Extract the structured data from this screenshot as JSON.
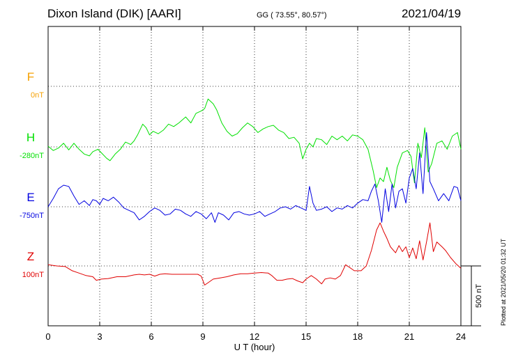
{
  "header": {
    "station": "Dixon Island (DIK)  [AARI]",
    "coords": "GG ( 73.55°,  80.57°)",
    "date": "2021/04/19"
  },
  "footer": {
    "plotted": "Plotted at 2021/05/20 01:32 UT"
  },
  "chart_data": {
    "type": "line",
    "xlabel": "U T (hour)",
    "xlim": [
      0,
      24
    ],
    "xticks": [
      0,
      3,
      6,
      9,
      12,
      15,
      18,
      21,
      24
    ],
    "scale_bar": "500 nT",
    "grid": true,
    "series": [
      {
        "name": "F",
        "offset_label": "0nT",
        "color": "#f5a000",
        "values": []
      },
      {
        "name": "H",
        "offset_label": "-280nT",
        "color": "#00e000",
        "points": [
          [
            0,
            -274
          ],
          [
            0.3,
            -310
          ],
          [
            0.6,
            -290
          ],
          [
            0.9,
            -250
          ],
          [
            1.2,
            -305
          ],
          [
            1.5,
            -250
          ],
          [
            1.8,
            -300
          ],
          [
            2.1,
            -340
          ],
          [
            2.4,
            -355
          ],
          [
            2.6,
            -320
          ],
          [
            2.9,
            -300
          ],
          [
            3.1,
            -330
          ],
          [
            3.4,
            -375
          ],
          [
            3.6,
            -395
          ],
          [
            3.9,
            -340
          ],
          [
            4.2,
            -300
          ],
          [
            4.5,
            -240
          ],
          [
            4.8,
            -260
          ],
          [
            5.0,
            -230
          ],
          [
            5.2,
            -180
          ],
          [
            5.5,
            -90
          ],
          [
            5.7,
            -120
          ],
          [
            5.9,
            -180
          ],
          [
            6.1,
            -150
          ],
          [
            6.4,
            -170
          ],
          [
            6.7,
            -140
          ],
          [
            7.0,
            -90
          ],
          [
            7.3,
            -110
          ],
          [
            7.6,
            -80
          ],
          [
            8.0,
            -30
          ],
          [
            8.3,
            -80
          ],
          [
            8.6,
            0
          ],
          [
            8.9,
            20
          ],
          [
            9.1,
            40
          ],
          [
            9.3,
            120
          ],
          [
            9.6,
            80
          ],
          [
            9.8,
            30
          ],
          [
            10.1,
            -80
          ],
          [
            10.4,
            -150
          ],
          [
            10.7,
            -190
          ],
          [
            11.0,
            -170
          ],
          [
            11.3,
            -120
          ],
          [
            11.6,
            -80
          ],
          [
            11.9,
            -110
          ],
          [
            12.2,
            -160
          ],
          [
            12.5,
            -130
          ],
          [
            12.8,
            -110
          ],
          [
            13.1,
            -100
          ],
          [
            13.4,
            -140
          ],
          [
            13.7,
            -160
          ],
          [
            14.0,
            -210
          ],
          [
            14.3,
            -200
          ],
          [
            14.6,
            -250
          ],
          [
            14.8,
            -380
          ],
          [
            15.0,
            -300
          ],
          [
            15.2,
            -250
          ],
          [
            15.4,
            -280
          ],
          [
            15.6,
            -210
          ],
          [
            15.9,
            -220
          ],
          [
            16.2,
            -260
          ],
          [
            16.5,
            -190
          ],
          [
            16.8,
            -220
          ],
          [
            17.1,
            -190
          ],
          [
            17.4,
            -230
          ],
          [
            17.7,
            -180
          ],
          [
            18.0,
            -190
          ],
          [
            18.3,
            -220
          ],
          [
            18.6,
            -300
          ],
          [
            18.9,
            -480
          ],
          [
            19.1,
            -620
          ],
          [
            19.3,
            -540
          ],
          [
            19.5,
            -570
          ],
          [
            19.7,
            -450
          ],
          [
            19.9,
            -560
          ],
          [
            20.1,
            -620
          ],
          [
            20.3,
            -450
          ],
          [
            20.6,
            -330
          ],
          [
            20.9,
            -310
          ],
          [
            21.1,
            -360
          ],
          [
            21.3,
            -580
          ],
          [
            21.5,
            -250
          ],
          [
            21.7,
            -370
          ],
          [
            21.9,
            -120
          ],
          [
            22.1,
            -490
          ],
          [
            22.3,
            -420
          ],
          [
            22.6,
            -250
          ],
          [
            22.9,
            -230
          ],
          [
            23.2,
            -300
          ],
          [
            23.5,
            -190
          ],
          [
            23.8,
            -160
          ],
          [
            24,
            -300
          ]
        ]
      },
      {
        "name": "E",
        "offset_label": "-750nT",
        "color": "#0000e0",
        "points": [
          [
            0,
            -750
          ],
          [
            0.3,
            -680
          ],
          [
            0.6,
            -600
          ],
          [
            0.9,
            -570
          ],
          [
            1.2,
            -580
          ],
          [
            1.5,
            -660
          ],
          [
            1.8,
            -730
          ],
          [
            2.1,
            -700
          ],
          [
            2.4,
            -740
          ],
          [
            2.6,
            -690
          ],
          [
            2.8,
            -700
          ],
          [
            3.0,
            -730
          ],
          [
            3.2,
            -680
          ],
          [
            3.5,
            -700
          ],
          [
            3.8,
            -670
          ],
          [
            4.1,
            -710
          ],
          [
            4.4,
            -760
          ],
          [
            4.7,
            -780
          ],
          [
            5.0,
            -800
          ],
          [
            5.3,
            -860
          ],
          [
            5.6,
            -830
          ],
          [
            5.9,
            -790
          ],
          [
            6.2,
            -760
          ],
          [
            6.5,
            -780
          ],
          [
            6.8,
            -820
          ],
          [
            7.1,
            -810
          ],
          [
            7.4,
            -770
          ],
          [
            7.7,
            -780
          ],
          [
            8.0,
            -810
          ],
          [
            8.3,
            -830
          ],
          [
            8.6,
            -790
          ],
          [
            8.9,
            -810
          ],
          [
            9.2,
            -850
          ],
          [
            9.5,
            -800
          ],
          [
            9.7,
            -880
          ],
          [
            9.9,
            -800
          ],
          [
            10.2,
            -820
          ],
          [
            10.5,
            -860
          ],
          [
            10.8,
            -800
          ],
          [
            11.1,
            -790
          ],
          [
            11.4,
            -810
          ],
          [
            11.7,
            -820
          ],
          [
            12.0,
            -810
          ],
          [
            12.3,
            -790
          ],
          [
            12.6,
            -830
          ],
          [
            12.9,
            -810
          ],
          [
            13.2,
            -790
          ],
          [
            13.5,
            -760
          ],
          [
            13.8,
            -750
          ],
          [
            14.1,
            -770
          ],
          [
            14.4,
            -740
          ],
          [
            14.7,
            -760
          ],
          [
            15.0,
            -780
          ],
          [
            15.2,
            -580
          ],
          [
            15.4,
            -720
          ],
          [
            15.6,
            -780
          ],
          [
            15.9,
            -770
          ],
          [
            16.2,
            -750
          ],
          [
            16.5,
            -790
          ],
          [
            16.8,
            -760
          ],
          [
            17.1,
            -770
          ],
          [
            17.4,
            -740
          ],
          [
            17.7,
            -760
          ],
          [
            18.0,
            -720
          ],
          [
            18.3,
            -690
          ],
          [
            18.6,
            -700
          ],
          [
            18.8,
            -620
          ],
          [
            19.0,
            -560
          ],
          [
            19.2,
            -700
          ],
          [
            19.4,
            -880
          ],
          [
            19.6,
            -600
          ],
          [
            19.8,
            -790
          ],
          [
            20.0,
            -560
          ],
          [
            20.2,
            -760
          ],
          [
            20.4,
            -620
          ],
          [
            20.6,
            -600
          ],
          [
            20.8,
            -720
          ],
          [
            21.0,
            -510
          ],
          [
            21.2,
            -430
          ],
          [
            21.4,
            -600
          ],
          [
            21.6,
            -300
          ],
          [
            21.8,
            -640
          ],
          [
            22.0,
            -130
          ],
          [
            22.2,
            -540
          ],
          [
            22.4,
            -600
          ],
          [
            22.7,
            -700
          ],
          [
            23.0,
            -640
          ],
          [
            23.3,
            -700
          ],
          [
            23.6,
            -580
          ],
          [
            23.8,
            -590
          ],
          [
            24,
            -700
          ]
        ]
      },
      {
        "name": "Z",
        "offset_label": "100nT",
        "color": "#e00000",
        "points": [
          [
            0,
            110
          ],
          [
            0.5,
            100
          ],
          [
            1.0,
            95
          ],
          [
            1.4,
            60
          ],
          [
            1.8,
            40
          ],
          [
            2.2,
            20
          ],
          [
            2.6,
            10
          ],
          [
            2.8,
            -20
          ],
          [
            3.1,
            -10
          ],
          [
            3.5,
            -5
          ],
          [
            4.0,
            10
          ],
          [
            4.5,
            10
          ],
          [
            5.0,
            25
          ],
          [
            5.3,
            30
          ],
          [
            5.6,
            25
          ],
          [
            5.9,
            30
          ],
          [
            6.2,
            15
          ],
          [
            6.5,
            30
          ],
          [
            6.8,
            35
          ],
          [
            7.2,
            30
          ],
          [
            7.7,
            30
          ],
          [
            8.2,
            30
          ],
          [
            8.7,
            30
          ],
          [
            8.9,
            15
          ],
          [
            9.1,
            -60
          ],
          [
            9.3,
            -40
          ],
          [
            9.6,
            -10
          ],
          [
            10.0,
            0
          ],
          [
            10.4,
            10
          ],
          [
            10.8,
            25
          ],
          [
            11.2,
            35
          ],
          [
            11.6,
            35
          ],
          [
            12.0,
            40
          ],
          [
            12.4,
            45
          ],
          [
            12.8,
            40
          ],
          [
            13.0,
            20
          ],
          [
            13.3,
            -20
          ],
          [
            13.6,
            -20
          ],
          [
            13.9,
            -10
          ],
          [
            14.2,
            -5
          ],
          [
            14.5,
            -25
          ],
          [
            14.8,
            -40
          ],
          [
            15.0,
            -10
          ],
          [
            15.3,
            20
          ],
          [
            15.6,
            -10
          ],
          [
            15.9,
            -50
          ],
          [
            16.1,
            -10
          ],
          [
            16.4,
            0
          ],
          [
            16.7,
            -10
          ],
          [
            17.0,
            20
          ],
          [
            17.3,
            110
          ],
          [
            17.5,
            90
          ],
          [
            17.8,
            60
          ],
          [
            18.2,
            60
          ],
          [
            18.5,
            100
          ],
          [
            18.8,
            230
          ],
          [
            19.1,
            400
          ],
          [
            19.3,
            460
          ],
          [
            19.5,
            390
          ],
          [
            19.7,
            330
          ],
          [
            19.9,
            260
          ],
          [
            20.2,
            210
          ],
          [
            20.4,
            270
          ],
          [
            20.6,
            220
          ],
          [
            20.8,
            260
          ],
          [
            21.0,
            170
          ],
          [
            21.2,
            250
          ],
          [
            21.4,
            160
          ],
          [
            21.6,
            310
          ],
          [
            21.8,
            150
          ],
          [
            22.0,
            300
          ],
          [
            22.2,
            460
          ],
          [
            22.4,
            220
          ],
          [
            22.6,
            300
          ],
          [
            22.9,
            260
          ],
          [
            23.1,
            230
          ],
          [
            23.4,
            170
          ],
          [
            23.7,
            120
          ],
          [
            24,
            80
          ]
        ]
      }
    ]
  }
}
